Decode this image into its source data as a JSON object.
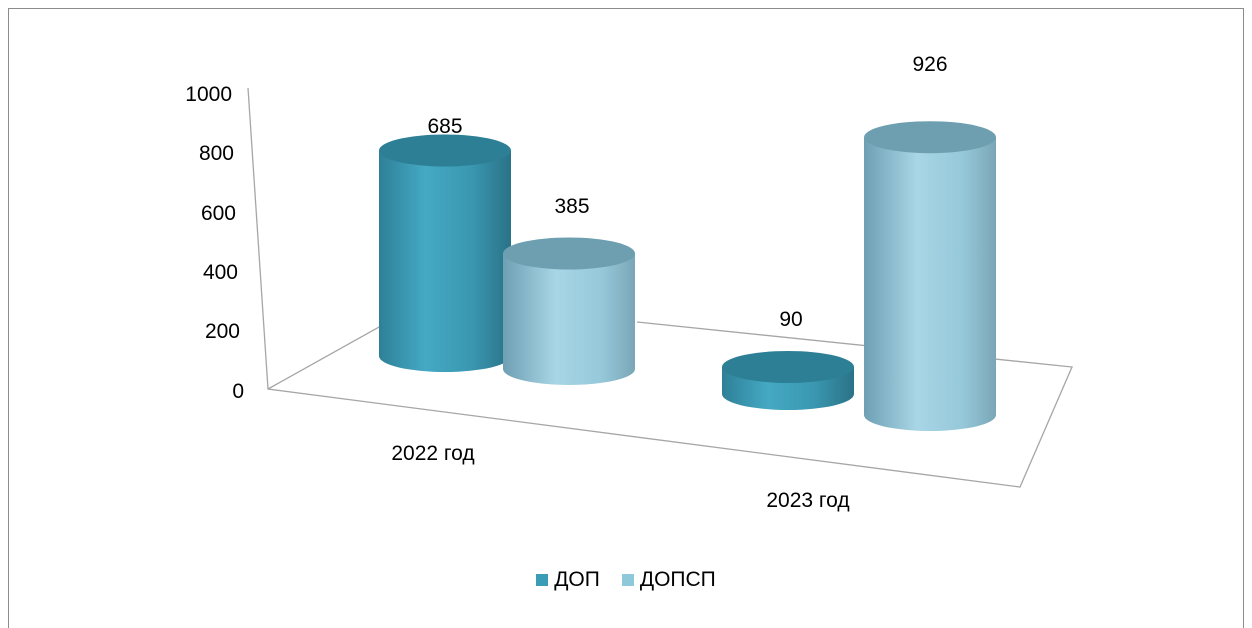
{
  "chart_data": {
    "type": "bar",
    "style": "3d-cylinder",
    "categories": [
      "2022 год",
      "2023 год"
    ],
    "series": [
      {
        "name": "ДОП",
        "values": [
          685,
          90
        ],
        "color": "#3a9db5"
      },
      {
        "name": "ДОПСП",
        "values": [
          385,
          926
        ],
        "color": "#8ec9da"
      }
    ],
    "y_ticks": [
      "0",
      "200",
      "400",
      "600",
      "800",
      "1000"
    ],
    "ylim": [
      0,
      1000
    ],
    "data_labels": [
      "685",
      "90",
      "385",
      "926"
    ],
    "legend_position": "bottom",
    "grid": false
  }
}
